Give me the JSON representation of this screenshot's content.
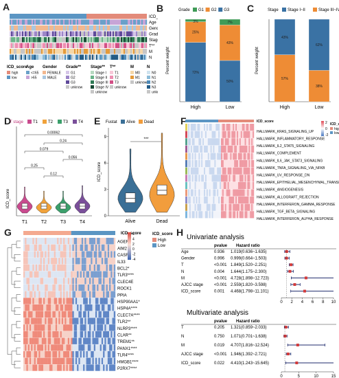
{
  "panels": {
    "A": "A",
    "B": "B",
    "C": "C",
    "D": "D",
    "E": "E",
    "F": "F",
    "G": "G",
    "H": "H"
  },
  "colors": {
    "high": "#e38b7a",
    "low": "#5b95c3",
    "blue": "#3a72a4",
    "orange": "#ee8c35",
    "green": "#3f9b57",
    "salmon": "#f4a98f",
    "navy": "#1e2a6b",
    "red": "#d33b3b",
    "violin_alive": "#3a6f96",
    "violin_dead": "#f29d3c",
    "t1": "#c94a8e",
    "t2": "#f1a23a",
    "t3": "#3b9f6b",
    "t4": "#7a4f9a"
  },
  "panelA": {
    "rows": [
      "ICD_score",
      "Age",
      "Gender",
      "Grade**",
      "Stage**",
      "T**",
      "M",
      "N"
    ],
    "legend": [
      {
        "title": "ICD_score",
        "items": [
          {
            "label": "high",
            "color": "#e38b7a"
          },
          {
            "label": "low",
            "color": "#5b95c3"
          }
        ]
      },
      {
        "title": "Age",
        "items": [
          {
            "label": "<=65",
            "color": "#6aa0c9"
          },
          {
            "label": ">65",
            "color": "#c7a4d6"
          }
        ]
      },
      {
        "title": "Gender",
        "items": [
          {
            "label": "FEMALE",
            "color": "#f2b88f"
          },
          {
            "label": "MALE",
            "color": "#a9c7e0"
          }
        ]
      },
      {
        "title": "Grade**",
        "items": [
          {
            "label": "G1",
            "color": "#d5c6e8"
          },
          {
            "label": "G2",
            "color": "#9d86c8"
          },
          {
            "label": "G3",
            "color": "#5f4a9a"
          },
          {
            "label": "unknow",
            "color": "#c6c6c6"
          }
        ]
      },
      {
        "title": "Stage**",
        "items": [
          {
            "label": "Stage I",
            "color": "#b7d9c1"
          },
          {
            "label": "Stage II",
            "color": "#6ab38a"
          },
          {
            "label": "Stage III",
            "color": "#2f7c56"
          },
          {
            "label": "Stage IV",
            "color": "#194a35"
          },
          {
            "label": "unknow",
            "color": "#c6c6c6"
          }
        ]
      },
      {
        "title": "T**",
        "items": [
          {
            "label": "T1",
            "color": "#f7c8d8"
          },
          {
            "label": "T2",
            "color": "#ee8fb2"
          },
          {
            "label": "T3",
            "color": "#d24f86"
          },
          {
            "label": "unknow",
            "color": "#c6c6c6"
          }
        ]
      },
      {
        "title": "M",
        "items": [
          {
            "label": "M0",
            "color": "#f5d7a8"
          },
          {
            "label": "M1",
            "color": "#e49a3a"
          },
          {
            "label": "unknow",
            "color": "#c6c6c6"
          }
        ]
      },
      {
        "title": "N",
        "items": [
          {
            "label": "N0",
            "color": "#cfe3ef"
          },
          {
            "label": "N1",
            "color": "#8cbbd8"
          },
          {
            "label": "N2",
            "color": "#4d8ab8"
          },
          {
            "label": "N3",
            "color": "#235b86"
          },
          {
            "label": "unknow",
            "color": "#c6c6c6"
          }
        ]
      }
    ]
  },
  "chart_data": [
    {
      "id": "B",
      "type": "bar",
      "stacked": true,
      "categories": [
        "High",
        "Low"
      ],
      "ylabel": "Percent weight",
      "legend_title": "Grade",
      "legend_position": "top",
      "series": [
        {
          "name": "G1",
          "color": "#3f9b57",
          "values": [
            3,
            7
          ]
        },
        {
          "name": "G2",
          "color": "#ee8c35",
          "values": [
            25,
            43
          ]
        },
        {
          "name": "G3",
          "color": "#3a72a4",
          "values": [
            72,
            50
          ]
        }
      ],
      "labels": {
        "G1": [
          "3%",
          "7%"
        ],
        "G2": [
          "25%",
          "43%"
        ],
        "G3": [
          "72%",
          "50%"
        ]
      }
    },
    {
      "id": "C",
      "type": "bar",
      "stacked": true,
      "categories": [
        "High",
        "Low"
      ],
      "ylabel": "Percent weight",
      "legend_title": "Stage",
      "legend_position": "top",
      "series": [
        {
          "name": "Stage I~II",
          "color": "#3a72a4",
          "values": [
            43,
            62
          ]
        },
        {
          "name": "Stage III~IV",
          "color": "#ee8c35",
          "values": [
            57,
            38
          ]
        }
      ],
      "labels": {
        "Stage I~II": [
          "43%",
          "62%"
        ],
        "Stage III~IV": [
          "57%",
          "38%"
        ]
      }
    },
    {
      "id": "D",
      "type": "violin",
      "legend_title": "T stage",
      "legend_position": "top",
      "categories": [
        "T1",
        "T2",
        "T3",
        "T4"
      ],
      "ylabel": "ICD_score",
      "medians": [
        0.9,
        0.7,
        0.6,
        0.9
      ],
      "comparisons": [
        {
          "from": "T1",
          "to": "T4",
          "p": "0.00062"
        },
        {
          "from": "T2",
          "to": "T4",
          "p": "0.24"
        },
        {
          "from": "T1",
          "to": "T3",
          "p": "0.079"
        },
        {
          "from": "T3",
          "to": "T4",
          "p": "0.056"
        },
        {
          "from": "T1",
          "to": "T2",
          "p": "0.25"
        },
        {
          "from": "T2",
          "to": "T3",
          "p": "0.12"
        }
      ]
    },
    {
      "id": "E",
      "type": "violin",
      "legend_title": "Fustat",
      "legend_position": "top",
      "categories": [
        "Alive",
        "Dead"
      ],
      "series": [
        {
          "name": "Alive",
          "color": "#3a6f96"
        },
        {
          "name": "Dead",
          "color": "#f29d3c"
        }
      ],
      "ylabel": "ICD_score",
      "yticks": [
        0,
        3,
        6,
        9
      ],
      "ylim": [
        0,
        10
      ],
      "medians": [
        2.0,
        2.9
      ],
      "significance": "***"
    },
    {
      "id": "F",
      "type": "heatmap",
      "legend_title": "ICD_score",
      "legend": [
        {
          "label": "high",
          "color": "#e38b7a"
        },
        {
          "label": "low",
          "color": "#5b95c3"
        }
      ],
      "scale_ticks": [
        "2",
        "0",
        "-2"
      ],
      "rows": [
        "HALLMARK_KRAS_SIGNALING_UP",
        "HALLMARK_INFLAMMATORY_RESPONSE",
        "HALLMARK_IL2_STAT5_SIGNALING",
        "HALLMARK_COMPLEMENT",
        "HALLMARK_IL6_JAK_STAT3_SIGNALING",
        "HALLMARK_TNFA_SIGNALING_VIA_NFKB",
        "HALLMARK_UV_RESPONSE_DN",
        "HALLMARK_EPITHELIAL_MESENCHYMAL_TRANSITION",
        "HALLMARK_ANGIOGENESIS",
        "HALLMARK_ALLOGRAFT_REJECTION",
        "HALLMARK_INTERFERON_GAMMA_RESPONSE",
        "HALLMARK_TGF_BETA_SIGNALING",
        "HALLMARK_INTERFERON_ALPHA_RESPONSE"
      ]
    },
    {
      "id": "G",
      "type": "heatmap",
      "legend_title": "ICD_score",
      "legend": [
        {
          "label": "High",
          "color": "#e38b7a"
        },
        {
          "label": "Low",
          "color": "#5b95c3"
        }
      ],
      "scale_ticks": [
        "6",
        "4",
        "2",
        "0",
        "-2",
        "-4"
      ],
      "rows": [
        "AGER*",
        "AIM2",
        "CASR",
        "IL33",
        "BCL2*",
        "TLR3****",
        "CLEC4E",
        "ROCK1",
        "PPIA",
        "HSP90AA1*",
        "HSP4A****",
        "CLEC7A****",
        "TLR2**",
        "NLRP3****",
        "CLAR**",
        "TREM1**",
        "PANX1****",
        "TLR4****",
        "HMGB1****",
        "P2RX7****"
      ]
    },
    {
      "id": "H_uni",
      "type": "table",
      "title": "Univariate analysis",
      "columns": [
        "",
        "pvalue",
        "Hazard ratio"
      ],
      "rows": [
        {
          "var": "Age",
          "p": "0.936",
          "hr": "1.019(0.636~1.635)",
          "est": 1.019,
          "lo": 0.636,
          "hi": 1.635
        },
        {
          "var": "Gender",
          "p": "0.996",
          "hr": "0.999(0.664~1.503)",
          "est": 0.999,
          "lo": 0.664,
          "hi": 1.503
        },
        {
          "var": "T",
          "p": "<0.001",
          "hr": "1.849(1.520~2.251)",
          "est": 1.849,
          "lo": 1.52,
          "hi": 2.251
        },
        {
          "var": "N",
          "p": "0.004",
          "hr": "1.644(1.175~2.300)",
          "est": 1.644,
          "lo": 1.175,
          "hi": 2.3
        },
        {
          "var": "M",
          "p": "<0.001",
          "hr": "4.728(1.898~12.723)",
          "est": 4.728,
          "lo": 1.898,
          "hi": 12.723
        },
        {
          "var": "AJCC stage",
          "p": "<0.001",
          "hr": "2.559(1.820~3.598)",
          "est": 2.559,
          "lo": 1.82,
          "hi": 3.598
        },
        {
          "var": "ICD_score",
          "p": "0.001",
          "hr": "4.468(1.798~11.101)",
          "est": 4.468,
          "lo": 1.798,
          "hi": 11.101
        }
      ],
      "xticks": [
        0,
        2,
        4,
        6,
        8,
        10
      ]
    },
    {
      "id": "H_multi",
      "type": "table",
      "title": "Multivariate analysis",
      "columns": [
        "",
        "pvalue",
        "Hazard ratio"
      ],
      "rows": [
        {
          "var": "T",
          "p": "0.205",
          "hr": "1.321(0.859~2.033)",
          "est": 1.321,
          "lo": 0.859,
          "hi": 2.033
        },
        {
          "var": "N",
          "p": "0.750",
          "hr": "1.071(0.701~1.638)",
          "est": 1.071,
          "lo": 0.701,
          "hi": 1.638
        },
        {
          "var": "M",
          "p": "0.019",
          "hr": "4.707(1.816~12.524)",
          "est": 4.707,
          "lo": 1.816,
          "hi": 12.524
        },
        {
          "var": "AJCC stage",
          "p": "<0.001",
          "hr": "1.946(1.392~2.721)",
          "est": 1.946,
          "lo": 1.392,
          "hi": 2.721
        },
        {
          "var": "ICD_score",
          "p": "0.022",
          "hr": "4.410(1.243~15.645)",
          "est": 4.41,
          "lo": 1.243,
          "hi": 15.645
        }
      ],
      "xticks": [
        0,
        5,
        10,
        15
      ]
    }
  ]
}
